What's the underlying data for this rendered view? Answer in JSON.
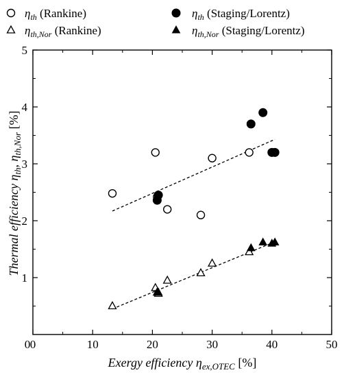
{
  "chart_data": {
    "type": "scatter",
    "xlim": [
      0,
      50
    ],
    "ylim": [
      0,
      5
    ],
    "x_ticks": [
      0,
      10,
      20,
      30,
      40,
      50
    ],
    "y_ticks": [
      1,
      2,
      3,
      4,
      5
    ],
    "y_origin_label": "0",
    "grid": false,
    "legend_position": "top, above plot, 2 columns",
    "xlabel": {
      "prefix": "Exergy efficiency ",
      "symbol": "η",
      "subscript": "ex,OTEC",
      "unit": " [%]"
    },
    "ylabel": {
      "prefix": "Thermal efficiency ",
      "symbol1": "η",
      "subscript1": "th",
      "separator": ", ",
      "symbol2": "η",
      "subscript2": "th,Nor",
      "unit": " [%]"
    },
    "series": [
      {
        "name": "(Rankine)",
        "symbol": "η",
        "subscript": "th",
        "marker": "circle-open",
        "points": [
          [
            13.3,
            2.48
          ],
          [
            20.5,
            3.2
          ],
          [
            20.8,
            2.42
          ],
          [
            22.5,
            2.2
          ],
          [
            28.1,
            2.1
          ],
          [
            30.0,
            3.1
          ],
          [
            36.2,
            3.2
          ]
        ]
      },
      {
        "name": "(Staging/Lorentz)",
        "symbol": "η",
        "subscript": "th",
        "marker": "circle-filled",
        "points": [
          [
            20.8,
            2.36
          ],
          [
            21.0,
            2.45
          ],
          [
            36.5,
            3.7
          ],
          [
            38.5,
            3.9
          ],
          [
            40.0,
            3.2
          ],
          [
            40.5,
            3.2
          ]
        ]
      },
      {
        "name": "(Rankine)",
        "symbol": "η",
        "subscript": "th,Nor",
        "marker": "triangle-open",
        "points": [
          [
            13.3,
            0.5
          ],
          [
            20.5,
            0.82
          ],
          [
            20.8,
            0.74
          ],
          [
            21.0,
            0.72
          ],
          [
            22.5,
            0.95
          ],
          [
            28.1,
            1.08
          ],
          [
            30.0,
            1.25
          ],
          [
            36.2,
            1.45
          ]
        ]
      },
      {
        "name": "(Staging/Lorentz)",
        "symbol": "η",
        "subscript": "th,Nor",
        "marker": "triangle-filled",
        "points": [
          [
            20.8,
            0.74
          ],
          [
            21.0,
            0.74
          ],
          [
            36.5,
            1.52
          ],
          [
            38.5,
            1.62
          ],
          [
            40.0,
            1.6
          ],
          [
            40.5,
            1.62
          ]
        ]
      }
    ],
    "trendlines": [
      {
        "style": "dashed",
        "from": [
          13.3,
          2.17
        ],
        "to": [
          40.5,
          3.43
        ]
      },
      {
        "style": "dashed",
        "from": [
          13.3,
          0.45
        ],
        "to": [
          40.5,
          1.63
        ]
      }
    ]
  }
}
